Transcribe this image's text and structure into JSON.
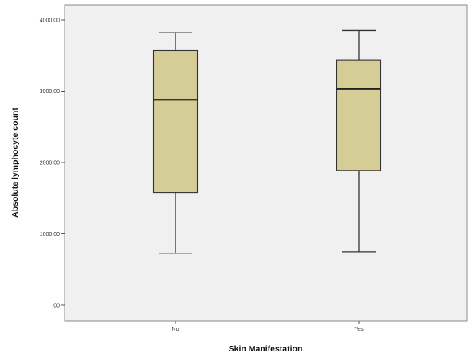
{
  "chart_data": {
    "type": "boxplot",
    "xlabel": "Skin Manifestation",
    "ylabel": "Absolute lymphocyte count",
    "ylim": [
      0,
      4200
    ],
    "y_ticks": [
      0,
      1000,
      2000,
      3000,
      4000
    ],
    "y_tick_labels": [
      ".00",
      "1000.00",
      "2000.00",
      "3000.00",
      "4000.00"
    ],
    "categories": [
      "No",
      "Yes"
    ],
    "boxes": [
      {
        "category": "No",
        "min": 730,
        "q1": 1580,
        "median": 2880,
        "q3": 3570,
        "max": 3820
      },
      {
        "category": "Yes",
        "min": 750,
        "q1": 1890,
        "median": 3030,
        "q3": 3440,
        "max": 3850
      }
    ],
    "grid": false,
    "colors": {
      "plot_background": "#f0f0f0",
      "box_fill": "#d4cd96",
      "box_stroke": "#333333"
    }
  }
}
